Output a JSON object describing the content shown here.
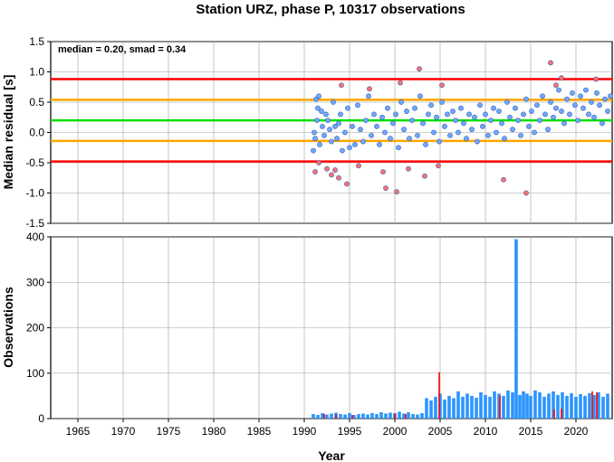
{
  "title": "Station URZ, phase P, 10317 observations",
  "xlabel": "Year",
  "chart_data": [
    {
      "type": "scatter",
      "ylabel": "Median residual [s]",
      "annotation": "median = 0.20, smad = 0.34",
      "xlim": [
        1962.0,
        2024.0
      ],
      "ylim": [
        -1.5,
        1.5
      ],
      "yticks": [
        "-1.5",
        "-1.0",
        "-0.5",
        "0.0",
        "0.5",
        "1.0",
        "1.5"
      ],
      "grid": true,
      "reference_lines": [
        {
          "y": 0.88,
          "color": "#ff0000"
        },
        {
          "y": 0.54,
          "color": "#ffa500"
        },
        {
          "y": 0.2,
          "color": "#00e000"
        },
        {
          "y": -0.14,
          "color": "#ffa500"
        },
        {
          "y": -0.48,
          "color": "#ff0000"
        }
      ],
      "series": [
        {
          "color": "#6fa8ff",
          "points": [
            [
              1991.0,
              -0.3
            ],
            [
              1991.1,
              0.0
            ],
            [
              1991.2,
              -0.1
            ],
            [
              1991.3,
              0.55
            ],
            [
              1991.4,
              0.2
            ],
            [
              1991.5,
              0.4
            ],
            [
              1991.6,
              0.6
            ],
            [
              1991.7,
              -0.2
            ],
            [
              1991.9,
              0.35
            ],
            [
              1992.0,
              0.1
            ],
            [
              1992.2,
              -0.05
            ],
            [
              1992.4,
              0.3
            ],
            [
              1992.6,
              0.2
            ],
            [
              1992.8,
              0.05
            ],
            [
              1993.0,
              -0.15
            ],
            [
              1993.2,
              0.5
            ],
            [
              1993.4,
              0.1
            ],
            [
              1993.6,
              -0.1
            ],
            [
              1993.8,
              0.15
            ],
            [
              1994.0,
              0.3
            ],
            [
              1994.2,
              -0.3
            ],
            [
              1994.5,
              0.0
            ],
            [
              1994.8,
              0.4
            ],
            [
              1995.0,
              -0.25
            ],
            [
              1995.3,
              0.1
            ],
            [
              1995.6,
              -0.2
            ],
            [
              1995.9,
              0.45
            ],
            [
              1996.2,
              0.05
            ],
            [
              1996.5,
              -0.15
            ],
            [
              1996.8,
              0.2
            ],
            [
              1997.1,
              0.6
            ],
            [
              1997.4,
              -0.05
            ],
            [
              1997.7,
              0.3
            ],
            [
              1998.0,
              0.1
            ],
            [
              1998.3,
              -0.2
            ],
            [
              1998.6,
              0.25
            ],
            [
              1998.9,
              0.0
            ],
            [
              1999.2,
              0.4
            ],
            [
              1999.5,
              -0.1
            ],
            [
              1999.8,
              0.15
            ],
            [
              2000.1,
              0.3
            ],
            [
              2000.4,
              -0.25
            ],
            [
              2000.7,
              0.5
            ],
            [
              2001.0,
              0.05
            ],
            [
              2001.3,
              0.35
            ],
            [
              2001.6,
              -0.1
            ],
            [
              2001.9,
              0.2
            ],
            [
              2002.2,
              0.4
            ],
            [
              2002.5,
              -0.05
            ],
            [
              2002.8,
              0.6
            ],
            [
              2003.1,
              0.15
            ],
            [
              2003.4,
              -0.2
            ],
            [
              2003.7,
              0.3
            ],
            [
              2004.0,
              0.45
            ],
            [
              2004.3,
              0.0
            ],
            [
              2004.6,
              0.25
            ],
            [
              2004.9,
              -0.15
            ],
            [
              2005.2,
              0.5
            ],
            [
              2005.5,
              0.1
            ],
            [
              2005.8,
              0.3
            ],
            [
              2006.1,
              -0.05
            ],
            [
              2006.4,
              0.35
            ],
            [
              2006.7,
              0.2
            ],
            [
              2007.0,
              0.0
            ],
            [
              2007.3,
              0.4
            ],
            [
              2007.6,
              0.15
            ],
            [
              2007.9,
              -0.1
            ],
            [
              2008.2,
              0.3
            ],
            [
              2008.5,
              0.05
            ],
            [
              2008.8,
              0.25
            ],
            [
              2009.1,
              -0.15
            ],
            [
              2009.4,
              0.45
            ],
            [
              2009.7,
              0.1
            ],
            [
              2010.0,
              0.3
            ],
            [
              2010.3,
              -0.05
            ],
            [
              2010.6,
              0.2
            ],
            [
              2010.9,
              0.4
            ],
            [
              2011.2,
              0.0
            ],
            [
              2011.5,
              0.35
            ],
            [
              2011.8,
              0.15
            ],
            [
              2012.1,
              -0.1
            ],
            [
              2012.4,
              0.5
            ],
            [
              2012.7,
              0.25
            ],
            [
              2013.0,
              0.05
            ],
            [
              2013.3,
              0.4
            ],
            [
              2013.6,
              0.2
            ],
            [
              2013.9,
              -0.05
            ],
            [
              2014.2,
              0.3
            ],
            [
              2014.5,
              0.55
            ],
            [
              2014.8,
              0.1
            ],
            [
              2015.1,
              0.35
            ],
            [
              2015.4,
              0.0
            ],
            [
              2015.7,
              0.45
            ],
            [
              2016.0,
              0.2
            ],
            [
              2016.3,
              0.6
            ],
            [
              2016.6,
              0.3
            ],
            [
              2016.9,
              0.05
            ],
            [
              2017.2,
              0.5
            ],
            [
              2017.5,
              0.25
            ],
            [
              2017.8,
              0.4
            ],
            [
              2018.1,
              0.7
            ],
            [
              2018.4,
              0.35
            ],
            [
              2018.7,
              0.15
            ],
            [
              2019.0,
              0.55
            ],
            [
              2019.3,
              0.3
            ],
            [
              2019.6,
              0.65
            ],
            [
              2019.9,
              0.45
            ],
            [
              2020.2,
              0.2
            ],
            [
              2020.5,
              0.6
            ],
            [
              2020.8,
              0.4
            ],
            [
              2021.1,
              0.7
            ],
            [
              2021.4,
              0.3
            ],
            [
              2021.7,
              0.5
            ],
            [
              2022.0,
              0.25
            ],
            [
              2022.3,
              0.65
            ],
            [
              2022.6,
              0.45
            ],
            [
              2022.9,
              0.15
            ],
            [
              2023.2,
              0.55
            ],
            [
              2023.5,
              0.35
            ],
            [
              2023.8,
              0.6
            ]
          ]
        },
        {
          "color": "#ff7070",
          "points": [
            [
              1991.2,
              -0.65
            ],
            [
              1991.6,
              -0.5
            ],
            [
              1992.5,
              -0.6
            ],
            [
              1993.0,
              -0.7
            ],
            [
              1993.4,
              -0.62
            ],
            [
              1993.8,
              -0.75
            ],
            [
              1994.1,
              0.78
            ],
            [
              1994.7,
              -0.85
            ],
            [
              1996.0,
              -0.55
            ],
            [
              1997.2,
              0.72
            ],
            [
              1998.7,
              -0.65
            ],
            [
              1999.0,
              -0.92
            ],
            [
              2000.2,
              -0.98
            ],
            [
              2000.6,
              0.82
            ],
            [
              2001.5,
              -0.6
            ],
            [
              2002.7,
              1.05
            ],
            [
              2003.3,
              -0.72
            ],
            [
              2004.8,
              -0.55
            ],
            [
              2005.2,
              0.78
            ],
            [
              2012.0,
              -0.78
            ],
            [
              2014.5,
              -1.0
            ],
            [
              2017.2,
              1.15
            ],
            [
              2017.8,
              0.78
            ],
            [
              2018.4,
              0.9
            ],
            [
              2022.2,
              0.88
            ]
          ]
        }
      ]
    },
    {
      "type": "bar",
      "ylabel": "Observations",
      "xlim": [
        1962.0,
        2024.0
      ],
      "ylim": [
        0,
        400
      ],
      "yticks": [
        "0",
        "100",
        "200",
        "300",
        "400"
      ],
      "xticks": [
        "1965",
        "1970",
        "1975",
        "1980",
        "1985",
        "1990",
        "1995",
        "2000",
        "2005",
        "2010",
        "2015",
        "2020"
      ],
      "grid": true,
      "bar_color": "#2b95ff",
      "spike_color": "#ff0000",
      "bars": [
        [
          1991.0,
          10
        ],
        [
          1991.5,
          8
        ],
        [
          1992.0,
          12
        ],
        [
          1992.5,
          9
        ],
        [
          1993.0,
          11
        ],
        [
          1993.5,
          13
        ],
        [
          1994.0,
          10
        ],
        [
          1994.5,
          9
        ],
        [
          1995.0,
          12
        ],
        [
          1995.5,
          8
        ],
        [
          1996.0,
          10
        ],
        [
          1996.5,
          11
        ],
        [
          1997.0,
          9
        ],
        [
          1997.5,
          12
        ],
        [
          1998.0,
          10
        ],
        [
          1998.5,
          14
        ],
        [
          1999.0,
          11
        ],
        [
          1999.5,
          13
        ],
        [
          2000.0,
          12
        ],
        [
          2000.5,
          15
        ],
        [
          2001.0,
          11
        ],
        [
          2001.5,
          14
        ],
        [
          2002.0,
          10
        ],
        [
          2002.5,
          9
        ],
        [
          2003.0,
          12
        ],
        [
          2003.5,
          45
        ],
        [
          2004.0,
          40
        ],
        [
          2004.5,
          48
        ],
        [
          2005.0,
          55
        ],
        [
          2005.5,
          42
        ],
        [
          2006.0,
          50
        ],
        [
          2006.5,
          45
        ],
        [
          2007.0,
          60
        ],
        [
          2007.5,
          48
        ],
        [
          2008.0,
          55
        ],
        [
          2008.5,
          50
        ],
        [
          2009.0,
          46
        ],
        [
          2009.5,
          58
        ],
        [
          2010.0,
          52
        ],
        [
          2010.5,
          48
        ],
        [
          2011.0,
          60
        ],
        [
          2011.5,
          55
        ],
        [
          2012.0,
          50
        ],
        [
          2012.5,
          62
        ],
        [
          2013.0,
          58
        ],
        [
          2013.4,
          395
        ],
        [
          2013.8,
          52
        ],
        [
          2014.2,
          60
        ],
        [
          2014.6,
          55
        ],
        [
          2015.0,
          50
        ],
        [
          2015.5,
          62
        ],
        [
          2016.0,
          58
        ],
        [
          2016.5,
          48
        ],
        [
          2017.0,
          55
        ],
        [
          2017.5,
          60
        ],
        [
          2018.0,
          52
        ],
        [
          2018.5,
          58
        ],
        [
          2019.0,
          50
        ],
        [
          2019.5,
          56
        ],
        [
          2020.0,
          48
        ],
        [
          2020.5,
          54
        ],
        [
          2021.0,
          50
        ],
        [
          2021.5,
          56
        ],
        [
          2022.0,
          52
        ],
        [
          2022.5,
          58
        ],
        [
          2023.0,
          48
        ],
        [
          2023.5,
          55
        ]
      ],
      "spikes": [
        [
          1992.2,
          10
        ],
        [
          1993.5,
          9
        ],
        [
          1995.3,
          8
        ],
        [
          2000.0,
          11
        ],
        [
          2001.2,
          10
        ],
        [
          2004.9,
          102
        ],
        [
          2011.6,
          50
        ],
        [
          2017.6,
          20
        ],
        [
          2018.4,
          22
        ],
        [
          2021.8,
          60
        ],
        [
          2022.3,
          58
        ]
      ]
    }
  ]
}
